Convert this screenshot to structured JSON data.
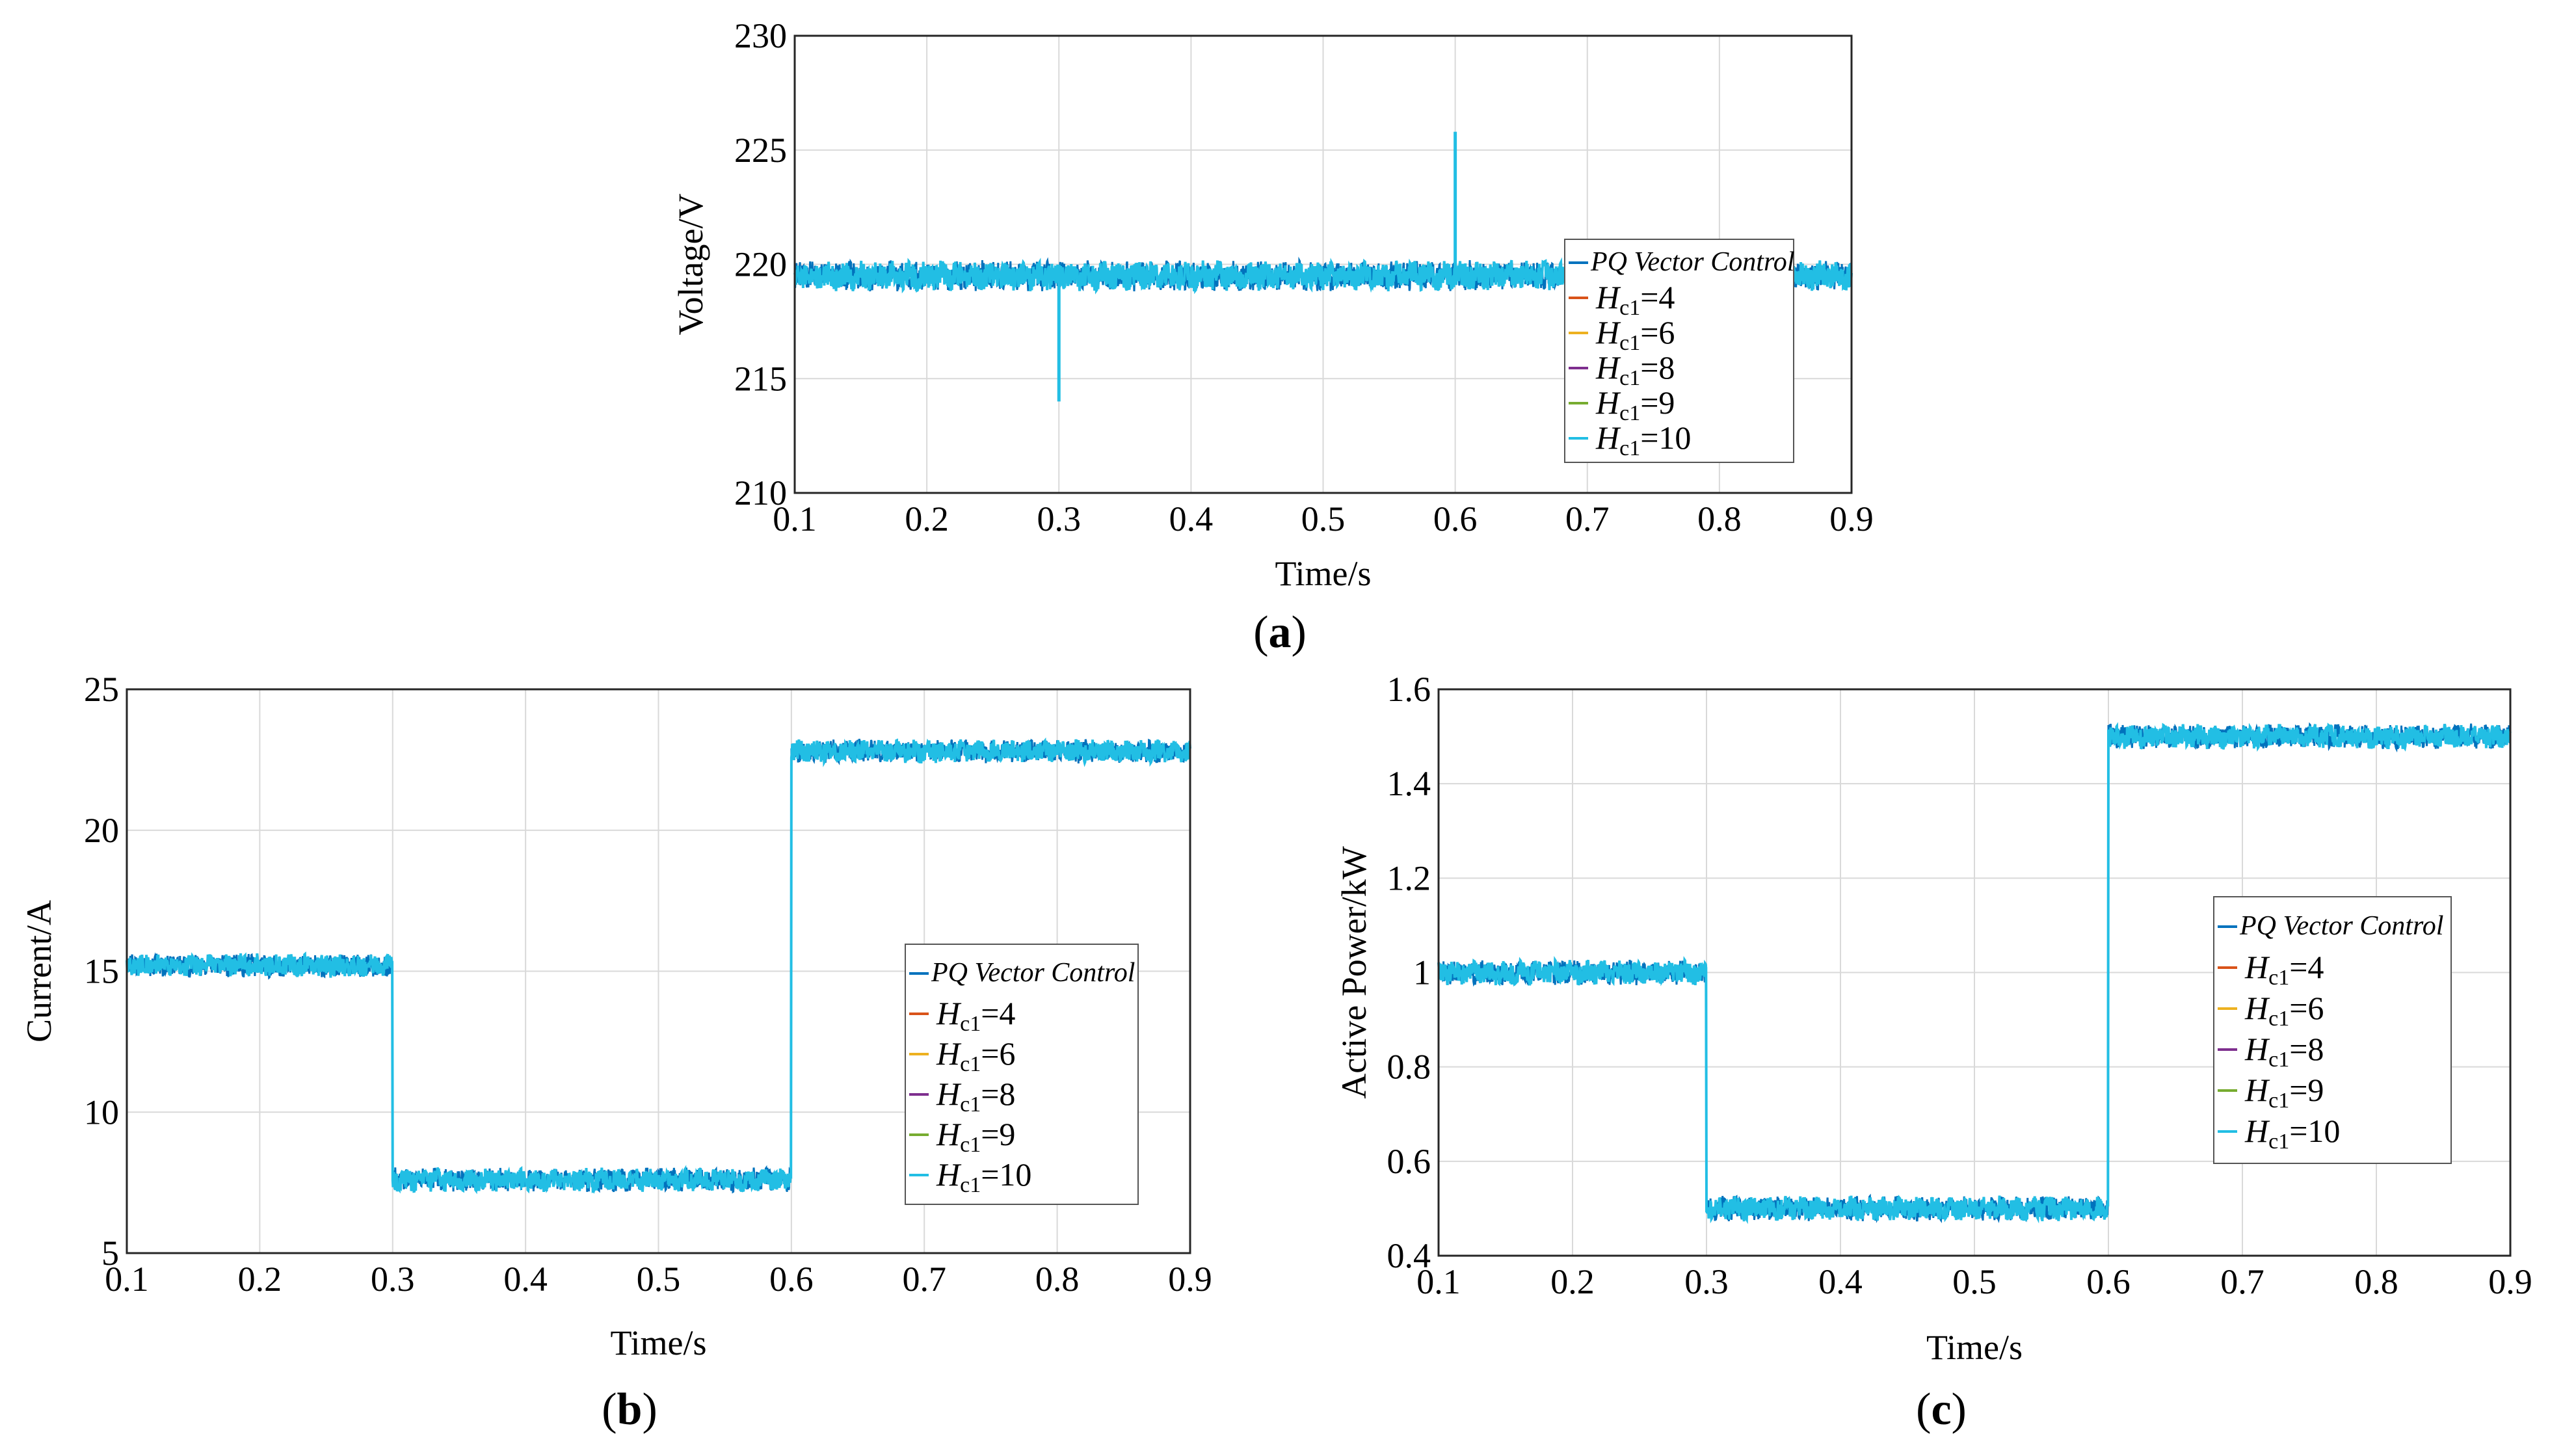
{
  "chart_data": [
    {
      "id": "a",
      "type": "line",
      "caption_letter": "a",
      "xlabel": "Time/s",
      "ylabel": "Voltage/V",
      "xlim": [
        0.1,
        0.9
      ],
      "ylim": [
        210,
        230
      ],
      "x_ticks": [
        "0.1",
        "0.2",
        "0.3",
        "0.4",
        "0.5",
        "0.6",
        "0.7",
        "0.8",
        "0.9"
      ],
      "y_ticks": [
        "210",
        "215",
        "220",
        "225",
        "230"
      ],
      "x_tick_values": [
        0.1,
        0.2,
        0.3,
        0.4,
        0.5,
        0.6,
        0.7,
        0.8,
        0.9
      ],
      "y_tick_values": [
        210,
        215,
        220,
        225,
        230
      ],
      "grid": true,
      "legend_position": "right",
      "series": [
        {
          "name": "PQ Vector Control",
          "color": "#0072BD"
        },
        {
          "name": "Hc1=4",
          "color": "#D95319"
        },
        {
          "name": "Hc1=6",
          "color": "#EDB120"
        },
        {
          "name": "Hc1=8",
          "color": "#7E2F8E"
        },
        {
          "name": "Hc1=9",
          "color": "#77AC30"
        },
        {
          "name": "Hc1=10",
          "color": "#22BEE4"
        }
      ],
      "signal": {
        "segments": [
          {
            "x0": 0.1,
            "x1": 0.9,
            "y": 219.5
          }
        ],
        "noise": 0.55,
        "spikes": [
          {
            "x": 0.3,
            "y": 214.0
          },
          {
            "x": 0.6,
            "y": 225.8
          }
        ]
      }
    },
    {
      "id": "b",
      "type": "line",
      "caption_letter": "b",
      "xlabel": "Time/s",
      "ylabel": "Current/A",
      "xlim": [
        0.1,
        0.9
      ],
      "ylim": [
        5,
        25
      ],
      "x_ticks": [
        "0.1",
        "0.2",
        "0.3",
        "0.4",
        "0.5",
        "0.6",
        "0.7",
        "0.8",
        "0.9"
      ],
      "y_ticks": [
        "5",
        "10",
        "15",
        "20",
        "25"
      ],
      "x_tick_values": [
        0.1,
        0.2,
        0.3,
        0.4,
        0.5,
        0.6,
        0.7,
        0.8,
        0.9
      ],
      "y_tick_values": [
        5,
        10,
        15,
        20,
        25
      ],
      "grid": true,
      "legend_position": "right",
      "series": [
        {
          "name": "PQ Vector Control",
          "color": "#0072BD"
        },
        {
          "name": "Hc1=4",
          "color": "#D95319"
        },
        {
          "name": "Hc1=6",
          "color": "#EDB120"
        },
        {
          "name": "Hc1=8",
          "color": "#7E2F8E"
        },
        {
          "name": "Hc1=9",
          "color": "#77AC30"
        },
        {
          "name": "Hc1=10",
          "color": "#22BEE4"
        }
      ],
      "signal": {
        "segments": [
          {
            "x0": 0.1,
            "x1": 0.3,
            "y": 15.2
          },
          {
            "x0": 0.3,
            "x1": 0.6,
            "y": 7.6
          },
          {
            "x0": 0.6,
            "x1": 0.9,
            "y": 22.8
          }
        ],
        "noise": 0.35,
        "spikes": []
      }
    },
    {
      "id": "c",
      "type": "line",
      "caption_letter": "c",
      "xlabel": "Time/s",
      "ylabel": "Active Power/kW",
      "xlim": [
        0.1,
        0.9
      ],
      "ylim": [
        0.4,
        1.6
      ],
      "x_ticks": [
        "0.1",
        "0.2",
        "0.3",
        "0.4",
        "0.5",
        "0.6",
        "0.7",
        "0.8",
        "0.9"
      ],
      "y_ticks": [
        "0.4",
        "0.6",
        "0.8",
        "1",
        "1.2",
        "1.4",
        "1.6"
      ],
      "x_tick_values": [
        0.1,
        0.2,
        0.3,
        0.4,
        0.5,
        0.6,
        0.7,
        0.8,
        0.9
      ],
      "y_tick_values": [
        0.4,
        0.6,
        0.8,
        1.0,
        1.2,
        1.4,
        1.6
      ],
      "grid": true,
      "legend_position": "right",
      "series": [
        {
          "name": "PQ Vector Control",
          "color": "#0072BD"
        },
        {
          "name": "Hc1=4",
          "color": "#D95319"
        },
        {
          "name": "Hc1=6",
          "color": "#EDB120"
        },
        {
          "name": "Hc1=8",
          "color": "#7E2F8E"
        },
        {
          "name": "Hc1=9",
          "color": "#77AC30"
        },
        {
          "name": "Hc1=10",
          "color": "#22BEE4"
        }
      ],
      "signal": {
        "segments": [
          {
            "x0": 0.1,
            "x1": 0.3,
            "y": 1.0
          },
          {
            "x0": 0.3,
            "x1": 0.6,
            "y": 0.5
          },
          {
            "x0": 0.6,
            "x1": 0.9,
            "y": 1.5
          }
        ],
        "noise": 0.022,
        "spikes": []
      }
    }
  ]
}
